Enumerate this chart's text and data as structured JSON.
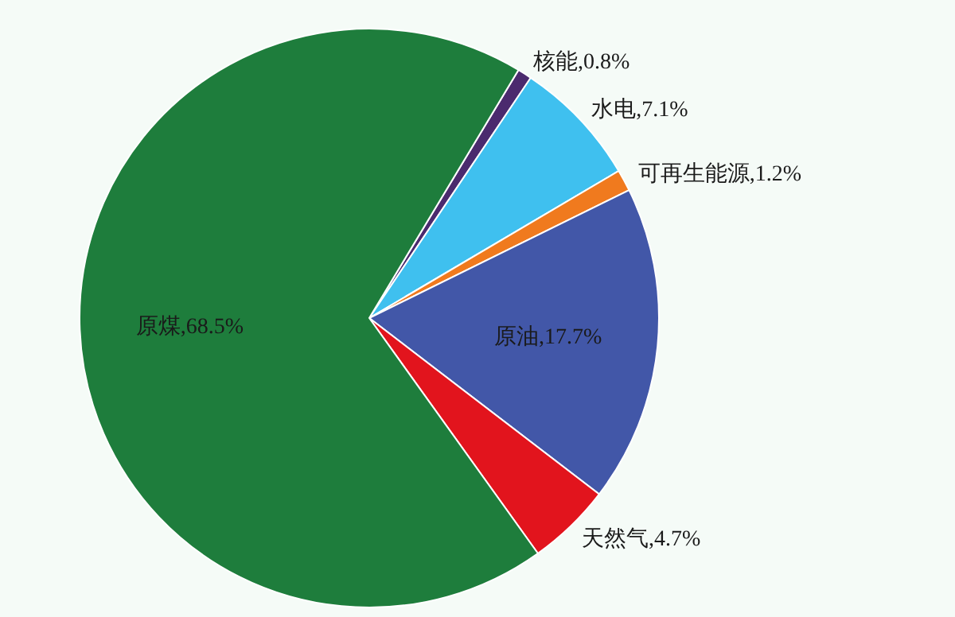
{
  "chart_data": {
    "type": "pie",
    "categories": [
      "核能",
      "水电",
      "可再生能源",
      "原油",
      "天然气",
      "原煤"
    ],
    "values": [
      0.8,
      7.1,
      1.2,
      17.7,
      4.7,
      68.5
    ],
    "value_labels": [
      ",0.8%",
      ",7.1%",
      ",1.2%",
      ",17.7%",
      ",4.7%",
      ",68.5%"
    ],
    "colors": [
      "#4b2a6e",
      "#3fc0ef",
      "#f07a1e",
      "#4257a8",
      "#e2141d",
      "#1e7d3c"
    ]
  }
}
